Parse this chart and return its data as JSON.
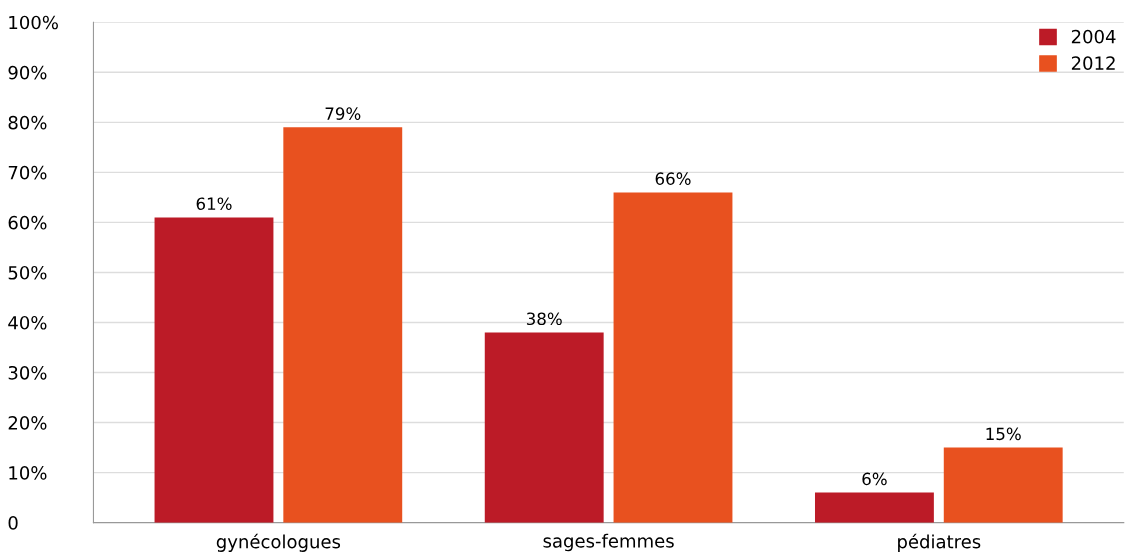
{
  "chart_data": {
    "type": "bar",
    "categories": [
      "gynécologues",
      "sages-femmes",
      "pédiatres"
    ],
    "series": [
      {
        "name": "2004",
        "color": "#bc1b27",
        "values": [
          61,
          38,
          6
        ],
        "value_labels": [
          "61%",
          "38%",
          "6%"
        ]
      },
      {
        "name": "2012",
        "color": "#e8511f",
        "values": [
          79,
          66,
          15
        ],
        "value_labels": [
          "79%",
          "66%",
          "15%"
        ]
      }
    ],
    "ylim": [
      0,
      100
    ],
    "yticks": [
      {
        "value": 0,
        "label": "0"
      },
      {
        "value": 10,
        "label": "10%"
      },
      {
        "value": 20,
        "label": "20%"
      },
      {
        "value": 30,
        "label": "30%"
      },
      {
        "value": 40,
        "label": "40%"
      },
      {
        "value": 50,
        "label": "50%"
      },
      {
        "value": 60,
        "label": "60%"
      },
      {
        "value": 70,
        "label": "70%"
      },
      {
        "value": 80,
        "label": "80%"
      },
      {
        "value": 90,
        "label": "90%"
      },
      {
        "value": 100,
        "label": "100%"
      }
    ],
    "grid": "y",
    "legend": "top right"
  }
}
